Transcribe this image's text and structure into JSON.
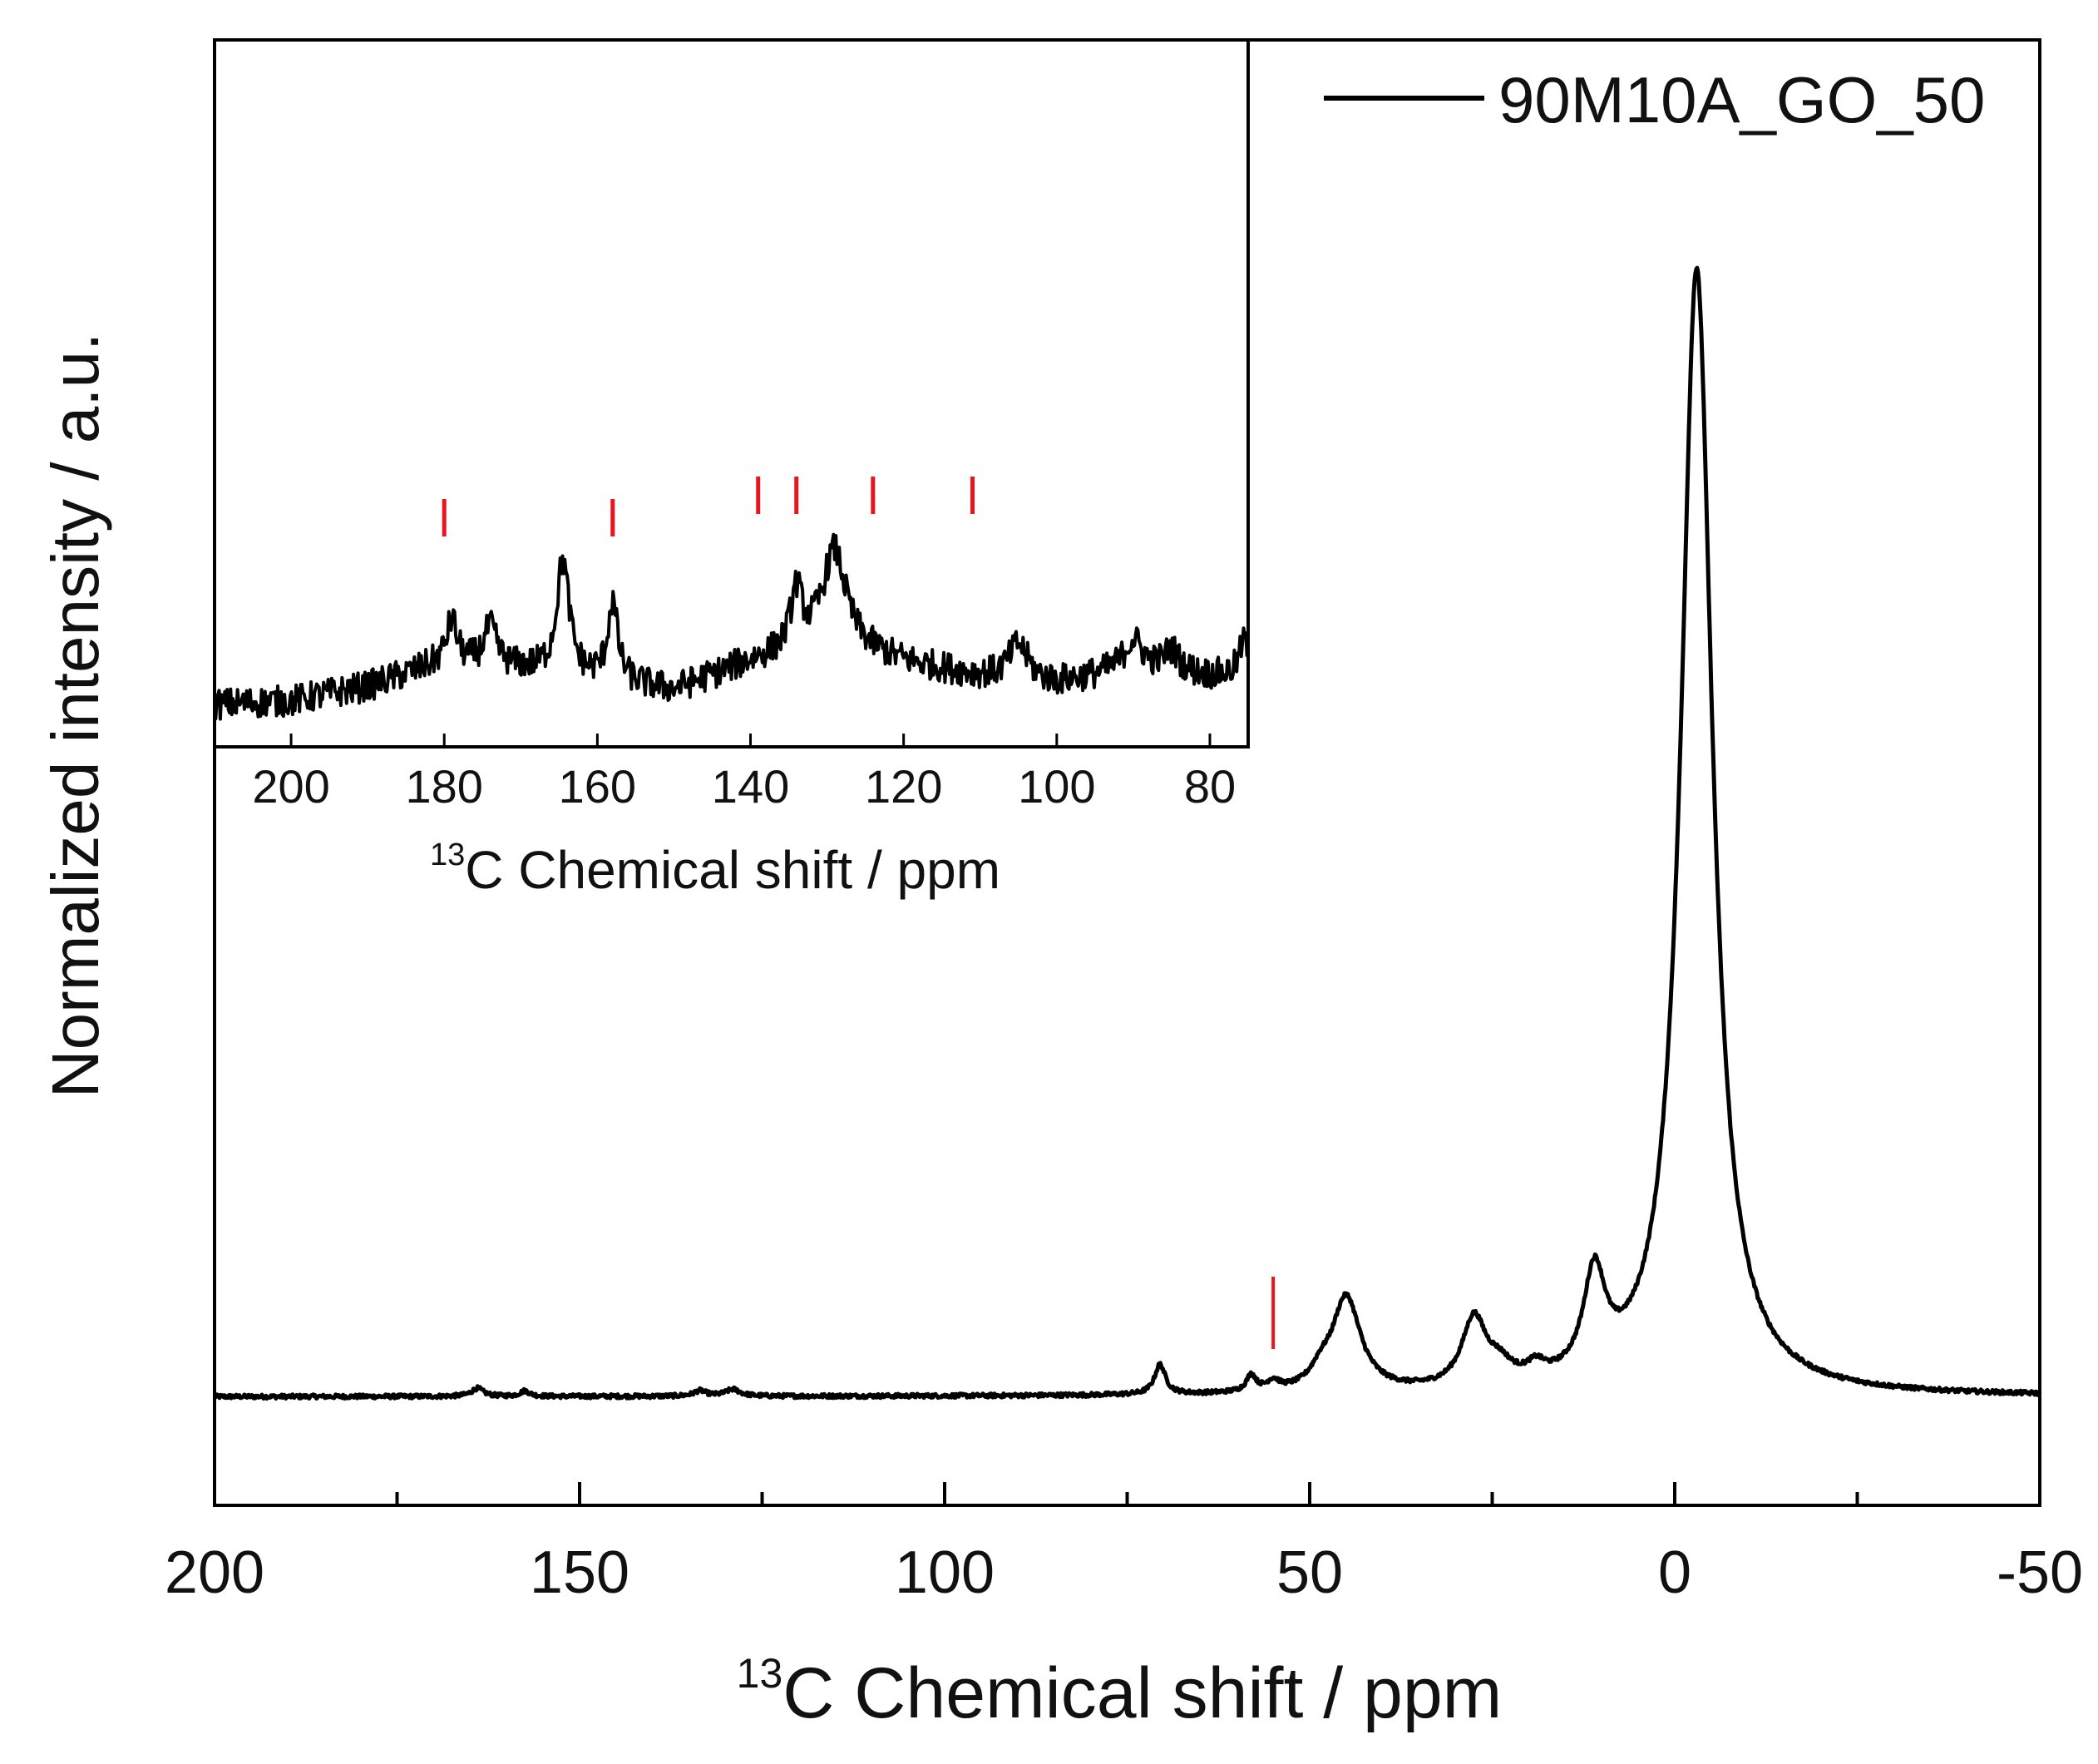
{
  "chart_data": [
    {
      "id": "main",
      "type": "line",
      "title": "",
      "xlabel_sup": "13",
      "xlabel": "C Chemical shift / ppm",
      "ylabel": "Normalized intensity / a.u.",
      "xlim": [
        200,
        -50
      ],
      "ylim": [
        -0.08,
        1.0
      ],
      "x_ticks": [
        200,
        150,
        100,
        50,
        0,
        -50
      ],
      "x_tick_labels": [
        "200",
        "150",
        "100",
        "50",
        "0",
        "-50"
      ],
      "x_minor_ticks": [
        175,
        125,
        75,
        25,
        -25
      ],
      "legend": {
        "position": "top-right",
        "label": "90M10A_GO_50"
      },
      "series": [
        {
          "name": "90M10A_GO_50",
          "color": "#000000",
          "baseline": 0.0,
          "peaks": [
            {
              "center": -3.0,
              "height": 0.83,
              "width": 2.6
            },
            {
              "center": 11.0,
              "height": 0.074,
              "width": 1.8
            },
            {
              "center": 27.5,
              "height": 0.05,
              "width": 2.0
            },
            {
              "center": 24.0,
              "height": 0.013,
              "width": 2.2
            },
            {
              "center": 19.0,
              "height": 0.01,
              "width": 1.5
            },
            {
              "center": 45.0,
              "height": 0.07,
              "width": 2.4
            },
            {
              "center": 48.5,
              "height": 0.01,
              "width": 1.6
            },
            {
              "center": 58.0,
              "height": 0.012,
              "width": 0.8
            },
            {
              "center": 55.0,
              "height": 0.007,
              "width": 1.0
            },
            {
              "center": 70.5,
              "height": 0.022,
              "width": 0.9
            },
            {
              "center": 164.0,
              "height": 0.006,
              "width": 1.0
            },
            {
              "center": 157.5,
              "height": 0.004,
              "width": 0.8
            },
            {
              "center": 133.5,
              "height": 0.004,
              "width": 1.0
            },
            {
              "center": 129.0,
              "height": 0.005,
              "width": 1.2
            }
          ],
          "noise": 0.0015
        }
      ],
      "markers": [
        {
          "x": 55,
          "color": "#e8141e"
        }
      ]
    },
    {
      "id": "inset",
      "type": "line",
      "title": "",
      "xlabel_sup": "13",
      "xlabel": "C Chemical shift / ppm",
      "ylabel": "",
      "xlim": [
        210,
        75
      ],
      "ylim": [
        0,
        1.0
      ],
      "x_ticks": [
        200,
        180,
        160,
        140,
        120,
        100,
        80
      ],
      "x_tick_labels": [
        "200",
        "180",
        "160",
        "140",
        "120",
        "100",
        "80"
      ],
      "series": [
        {
          "name": "90M10A_GO_50",
          "color": "#000000",
          "baseline_points": [
            [
              210,
              0.06
            ],
            [
              200,
              0.065
            ],
            [
              190,
              0.085
            ],
            [
              180,
              0.12
            ],
            [
              170,
              0.11
            ],
            [
              160,
              0.095
            ],
            [
              150,
              0.08
            ],
            [
              140,
              0.12
            ],
            [
              130,
              0.15
            ],
            [
              120,
              0.12
            ],
            [
              110,
              0.1
            ],
            [
              100,
              0.09
            ],
            [
              90,
              0.11
            ],
            [
              80,
              0.1
            ],
            [
              75,
              0.1
            ]
          ],
          "peaks": [
            {
              "center": 179.0,
              "height": 0.06,
              "width": 0.8
            },
            {
              "center": 174.0,
              "height": 0.055,
              "width": 1.0
            },
            {
              "center": 164.5,
              "height": 0.16,
              "width": 1.0
            },
            {
              "center": 158.0,
              "height": 0.11,
              "width": 0.8
            },
            {
              "center": 134.0,
              "height": 0.08,
              "width": 0.9
            },
            {
              "center": 129.0,
              "height": 0.13,
              "width": 1.8
            },
            {
              "center": 105.0,
              "height": 0.05,
              "width": 1.5
            },
            {
              "center": 90.0,
              "height": 0.04,
              "width": 1.5
            },
            {
              "center": 85.0,
              "height": 0.03,
              "width": 1.2
            },
            {
              "center": 75.5,
              "height": 0.05,
              "width": 0.8
            }
          ],
          "noise": 0.022
        }
      ],
      "markers": [
        {
          "x": 180,
          "color": "#e8141e"
        },
        {
          "x": 158,
          "color": "#e8141e"
        },
        {
          "x": 139,
          "color": "#e8141e"
        },
        {
          "x": 134,
          "color": "#e8141e"
        },
        {
          "x": 124,
          "color": "#e8141e"
        },
        {
          "x": 111,
          "color": "#e8141e"
        }
      ]
    }
  ]
}
